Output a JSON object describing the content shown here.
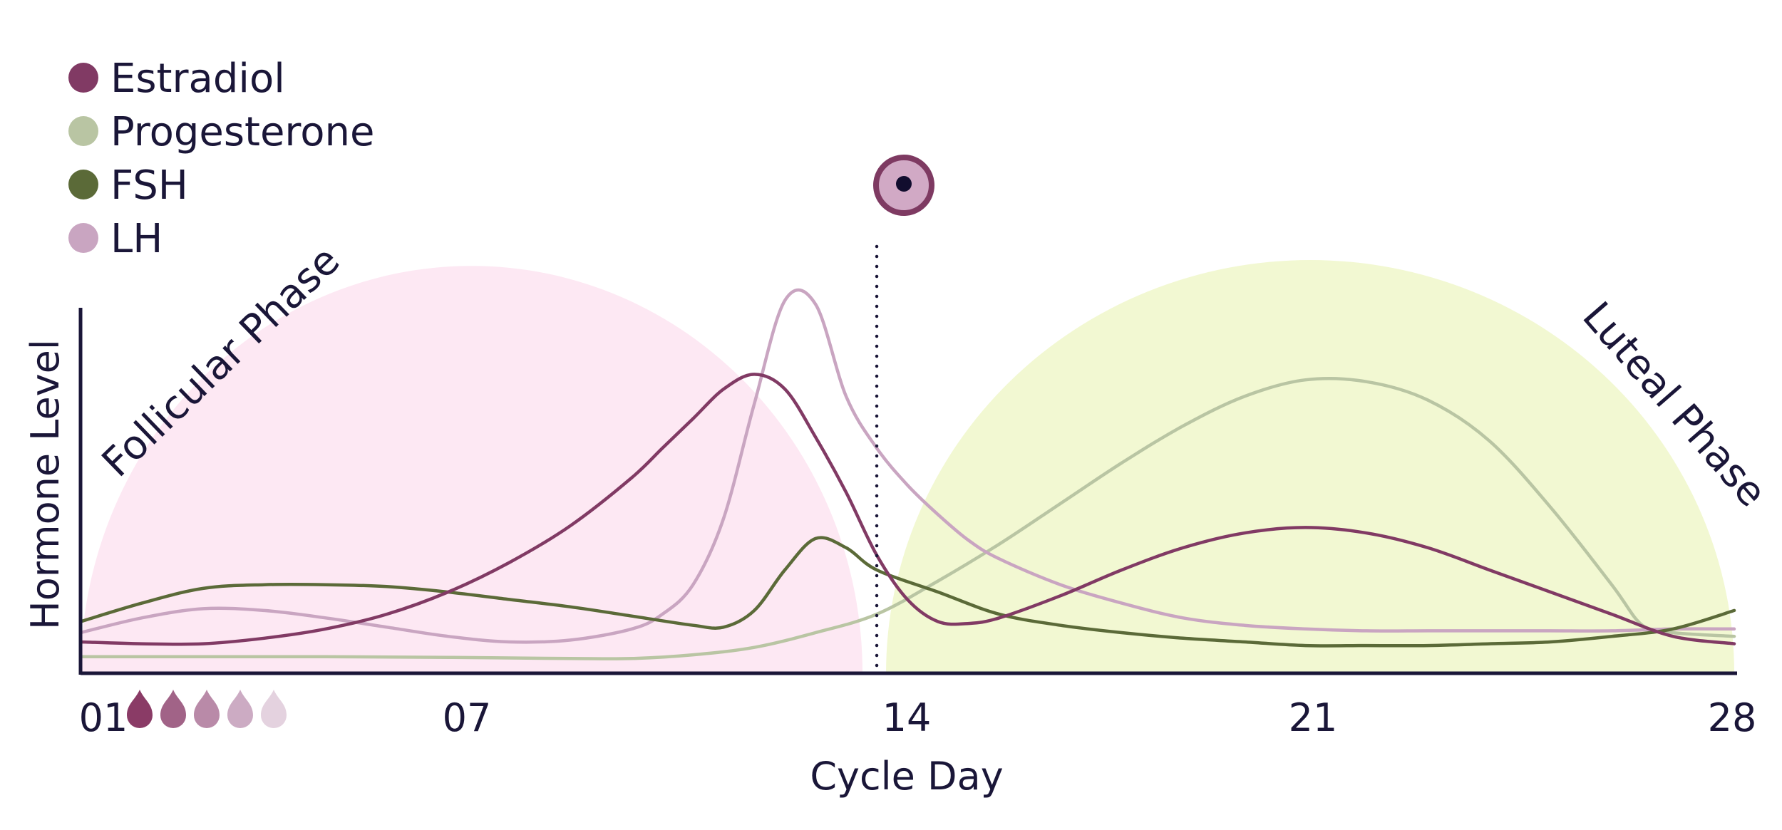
{
  "chart_data": {
    "type": "line",
    "xlabel": "Cycle Day",
    "ylabel": "Hormone Level",
    "xlim": [
      1,
      28
    ],
    "ylim": [
      0,
      100
    ],
    "x_ticks": [
      "01",
      "07",
      "14",
      "21",
      "28"
    ],
    "x_tick_values": [
      1,
      7,
      14,
      21,
      28
    ],
    "grid": false,
    "legend_position": "top-left",
    "ovulation_day": 14,
    "ovulation_icon": "egg-cell-icon",
    "menstruation_icon": "blood-drop-icon",
    "menstruation_drops": 5,
    "menstruation_colors": [
      "#8a3b66",
      "#a16387",
      "#b98aa8",
      "#ccabc3",
      "#e4d2df"
    ],
    "phases": [
      {
        "label": "Follicular Phase",
        "start_day": 1,
        "end_day": 14,
        "color": "#fde8f3"
      },
      {
        "label": "Luteal Phase",
        "start_day": 14,
        "end_day": 28,
        "color": "#f2f8d2"
      }
    ],
    "series": [
      {
        "name": "Estradiol",
        "color": "#813a64",
        "x": [
          1,
          2,
          3,
          4,
          5,
          6,
          7,
          8,
          9,
          10,
          10.5,
          11,
          11.5,
          12,
          12.5,
          13,
          13.5,
          14,
          14.5,
          15,
          15.5,
          16,
          17,
          18,
          19,
          20,
          21,
          22,
          23,
          24,
          25,
          26,
          27,
          28
        ],
        "y": [
          8.5,
          8,
          8,
          9.5,
          12,
          16,
          22,
          30,
          40,
          53,
          61,
          69,
          77,
          81,
          77,
          64,
          49,
          32,
          20,
          14,
          13.5,
          15,
          21,
          28,
          34,
          38,
          39.5,
          38,
          34,
          28,
          22,
          16,
          10,
          8
        ]
      },
      {
        "name": "Progesterone",
        "color": "#b9c5a3",
        "x": [
          1,
          3,
          5,
          7,
          9,
          10,
          11,
          12,
          13,
          14,
          15,
          16,
          17,
          18,
          19,
          20,
          21,
          22,
          23,
          24,
          25,
          26,
          26.5,
          27,
          28
        ],
        "y": [
          4.5,
          4.5,
          4.5,
          4.3,
          4,
          4,
          5,
          7,
          11,
          16,
          25,
          35,
          46,
          57,
          67,
          75,
          79.5,
          79,
          74,
          63,
          45,
          24,
          13,
          11,
          10
        ]
      },
      {
        "name": "FSH",
        "color": "#5b6a38",
        "x": [
          1,
          2,
          3,
          4,
          5,
          6,
          7,
          8,
          9,
          10,
          11,
          11.5,
          12,
          12.5,
          13,
          13.5,
          14,
          15,
          16,
          17,
          18,
          19,
          20,
          21,
          22,
          23,
          24,
          25,
          26,
          27,
          28
        ],
        "y": [
          14,
          19,
          23,
          24,
          24,
          23.5,
          22,
          20,
          18,
          15.5,
          13,
          12.5,
          17,
          28,
          36.5,
          34,
          28,
          22,
          16,
          13,
          11,
          9.5,
          8.5,
          7.5,
          7.5,
          7.5,
          8,
          8.5,
          10,
          12,
          17
        ]
      },
      {
        "name": "LH",
        "color": "#c9a5c1",
        "x": [
          1,
          2,
          3,
          4,
          5,
          6,
          7,
          8,
          9,
          10,
          10.5,
          11,
          11.5,
          12,
          12.5,
          13,
          13.5,
          14,
          14.5,
          15,
          15.5,
          16,
          17,
          18,
          19,
          20,
          21,
          22,
          23,
          24,
          25,
          26,
          27,
          28
        ],
        "y": [
          11,
          15,
          17.5,
          17,
          15,
          12.5,
          10,
          8.5,
          9,
          12,
          16,
          24,
          42,
          73,
          101,
          100,
          75,
          61,
          51,
          43,
          36,
          31,
          24,
          19,
          15,
          13,
          12,
          11.5,
          11.5,
          11.5,
          11.5,
          11.5,
          12,
          12
        ]
      }
    ]
  }
}
